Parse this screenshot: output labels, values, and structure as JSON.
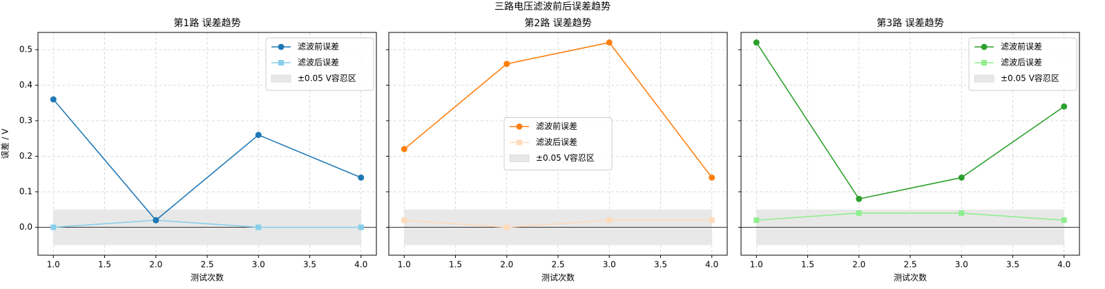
{
  "title": "三路电压滤波前后误差趋势",
  "chart_data": [
    {
      "type": "line",
      "title": "第1路 误差趋势",
      "xlabel": "测试次数",
      "ylabel": "误差 / V",
      "x": [
        1,
        2,
        3,
        4
      ],
      "series": [
        {
          "name": "滤波前误差",
          "color": "#1f77b4",
          "marker": "o",
          "values": [
            0.36,
            0.02,
            0.26,
            0.14
          ]
        },
        {
          "name": "滤波后误差",
          "color": "#87ceeb",
          "marker": "s",
          "values": [
            0.0,
            0.02,
            0.0,
            0.0
          ]
        }
      ],
      "band": {
        "name": "±0.05 V容忍区",
        "color": "#e8e8e8",
        "range": [
          -0.05,
          0.05
        ]
      },
      "hline": 0,
      "legend": "upper right",
      "grid": true,
      "xlim": [
        0.85,
        4.15
      ],
      "ylim": [
        -0.0785,
        0.5485
      ],
      "xticks": [
        {
          "value": 1,
          "label": "1.0"
        },
        1.5,
        {
          "value": 2,
          "label": "2.0"
        },
        2.5,
        {
          "value": 3,
          "label": "3.0"
        },
        3.5,
        {
          "value": 4,
          "label": "4.0"
        }
      ],
      "yticks": [
        {
          "value": 0,
          "label": "0.0"
        },
        0.1,
        0.2,
        0.3,
        0.4,
        0.5
      ]
    },
    {
      "type": "line",
      "title": "第2路 误差趋势",
      "xlabel": "测试次数",
      "x": [
        1,
        2,
        3,
        4
      ],
      "series": [
        {
          "name": "滤波前误差",
          "color": "#ff7f0e",
          "marker": "o",
          "values": [
            0.22,
            0.46,
            0.52,
            0.14
          ]
        },
        {
          "name": "滤波后误差",
          "color": "#ffdab9",
          "marker": "s",
          "values": [
            0.02,
            0.0,
            0.02,
            0.02
          ]
        }
      ],
      "band": {
        "name": "±0.05 V容忍区",
        "color": "#e8e8e8",
        "range": [
          -0.05,
          0.05
        ]
      },
      "hline": 0,
      "legend": "center",
      "grid": true,
      "sharey": true,
      "xlim": [
        0.85,
        4.15
      ],
      "ylim": [
        -0.0785,
        0.5485
      ],
      "xticks": [
        {
          "value": 1,
          "label": "1.0"
        },
        1.5,
        {
          "value": 2,
          "label": "2.0"
        },
        2.5,
        {
          "value": 3,
          "label": "3.0"
        },
        3.5,
        {
          "value": 4,
          "label": "4.0"
        }
      ],
      "yticks": [
        0,
        0.1,
        0.2,
        0.3,
        0.4,
        0.5
      ]
    },
    {
      "type": "line",
      "title": "第3路 误差趋势",
      "xlabel": "测试次数",
      "x": [
        1,
        2,
        3,
        4
      ],
      "series": [
        {
          "name": "滤波前误差",
          "color": "#2ca02c",
          "marker": "o",
          "values": [
            0.52,
            0.08,
            0.14,
            0.34
          ]
        },
        {
          "name": "滤波后误差",
          "color": "#90ee90",
          "marker": "s",
          "values": [
            0.02,
            0.04,
            0.04,
            0.02
          ]
        }
      ],
      "band": {
        "name": "±0.05 V容忍区",
        "color": "#e8e8e8",
        "range": [
          -0.05,
          0.05
        ]
      },
      "hline": 0,
      "legend": "upper right",
      "grid": true,
      "sharey": true,
      "xlim": [
        0.85,
        4.15
      ],
      "ylim": [
        -0.0785,
        0.5485
      ],
      "xticks": [
        {
          "value": 1,
          "label": "1.0"
        },
        1.5,
        {
          "value": 2,
          "label": "2.0"
        },
        2.5,
        {
          "value": 3,
          "label": "3.0"
        },
        3.5,
        {
          "value": 4,
          "label": "4.0"
        }
      ],
      "yticks": [
        0,
        0.1,
        0.2,
        0.3,
        0.4,
        0.5
      ]
    }
  ]
}
